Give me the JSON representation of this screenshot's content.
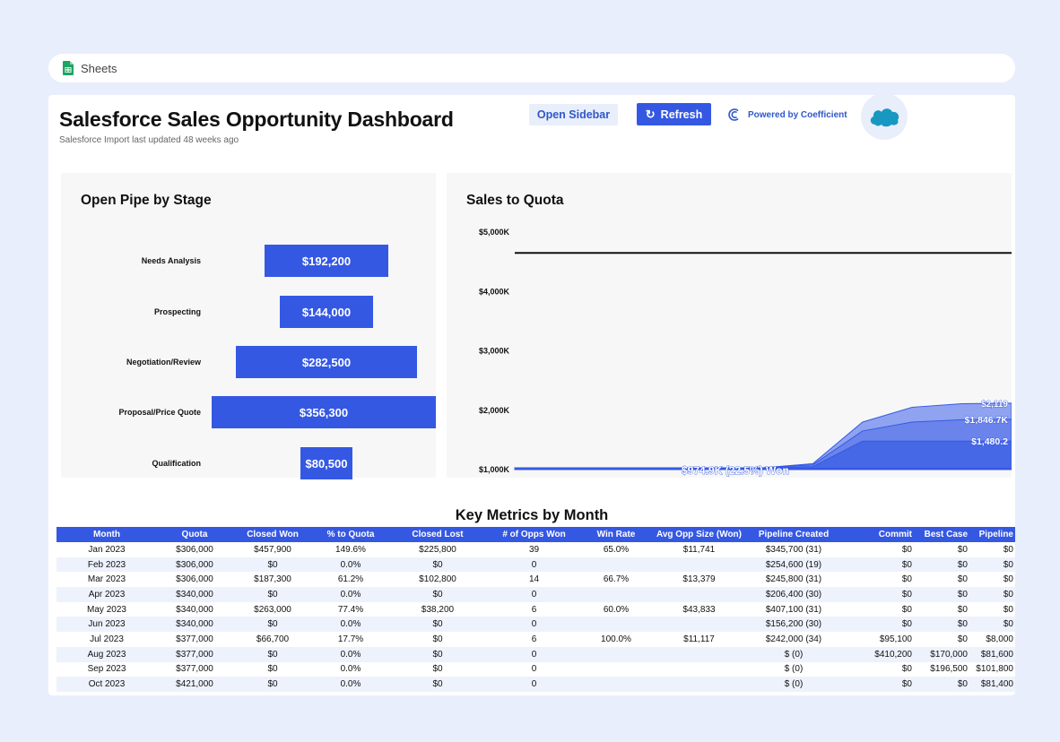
{
  "app": {
    "name": "Sheets"
  },
  "header": {
    "title": "Salesforce Sales Opportunity Dashboard",
    "subtitle": "Salesforce Import last updated 48 weeks ago",
    "open_sidebar_label": "Open Sidebar",
    "refresh_label": "Refresh",
    "powered_by": "Powered by Coefficient",
    "salesforce_logo_text": "salesforce"
  },
  "colors": {
    "accent": "#3558e3",
    "band_light": "#8fa3f0",
    "band_mid": "#6a84ec",
    "band_dark": "#4668e7"
  },
  "chart_data": [
    {
      "type": "bar",
      "title": "Open Pipe by Stage",
      "orientation": "horizontal",
      "categories": [
        "Needs Analysis",
        "Prospecting",
        "Negotiation/Review",
        "Proposal/Price Quote",
        "Qualification"
      ],
      "values": [
        192200,
        144000,
        282500,
        356300,
        80500
      ],
      "data_labels": [
        "$192,200",
        "$144,000",
        "$282,500",
        "$356,300",
        "$80,500"
      ]
    },
    {
      "type": "area",
      "title": "Sales to Quota",
      "y_ticks": [
        "$5,000K",
        "$4,000K",
        "$3,000K",
        "$2,000K",
        "$1,000K"
      ],
      "ylim_k": [
        1000,
        5000
      ],
      "quota_k": 4650,
      "annotations": [
        "$2,119",
        "$1,846.7K",
        "$1,480.2",
        "$974.9K (22.5%) Won"
      ],
      "series": [
        {
          "values_k": [
            1000,
            1000,
            1000,
            1000,
            1000,
            1000,
            1100,
            1800,
            2050,
            2110,
            2119
          ]
        },
        {
          "values_k": [
            1000,
            1000,
            1000,
            1000,
            1000,
            1000,
            1080,
            1650,
            1800,
            1840,
            1846.7
          ]
        },
        {
          "values_k": [
            1000,
            1000,
            1000,
            1000,
            1000,
            1000,
            1050,
            1480,
            1480,
            1480,
            1480.2
          ]
        },
        {
          "values_k": [
            974.9,
            974.9,
            974.9,
            974.9,
            974.9,
            974.9,
            974.9,
            974.9,
            974.9,
            974.9,
            974.9
          ]
        }
      ]
    }
  ],
  "metrics": {
    "title": "Key Metrics by Month",
    "columns": [
      "Month",
      "Quota",
      "Closed Won",
      "% to Quota",
      "Closed Lost",
      "# of Opps Won",
      "Win Rate",
      "Avg Opp Size (Won)",
      "Pipeline Created",
      "Commit",
      "Best Case",
      "Pipeline"
    ],
    "rows": [
      [
        "Jan 2023",
        "$306,000",
        "$457,900",
        "149.6%",
        "$225,800",
        "39",
        "65.0%",
        "$11,741",
        "$345,700 (31)",
        "$0",
        "$0",
        "$0"
      ],
      [
        "Feb 2023",
        "$306,000",
        "$0",
        "0.0%",
        "$0",
        "0",
        "",
        "",
        "$254,600 (19)",
        "$0",
        "$0",
        "$0"
      ],
      [
        "Mar 2023",
        "$306,000",
        "$187,300",
        "61.2%",
        "$102,800",
        "14",
        "66.7%",
        "$13,379",
        "$245,800 (31)",
        "$0",
        "$0",
        "$0"
      ],
      [
        "Apr 2023",
        "$340,000",
        "$0",
        "0.0%",
        "$0",
        "0",
        "",
        "",
        "$206,400 (30)",
        "$0",
        "$0",
        "$0"
      ],
      [
        "May 2023",
        "$340,000",
        "$263,000",
        "77.4%",
        "$38,200",
        "6",
        "60.0%",
        "$43,833",
        "$407,100 (31)",
        "$0",
        "$0",
        "$0"
      ],
      [
        "Jun 2023",
        "$340,000",
        "$0",
        "0.0%",
        "$0",
        "0",
        "",
        "",
        "$156,200 (30)",
        "$0",
        "$0",
        "$0"
      ],
      [
        "Jul 2023",
        "$377,000",
        "$66,700",
        "17.7%",
        "$0",
        "6",
        "100.0%",
        "$11,117",
        "$242,000 (34)",
        "$95,100",
        "$0",
        "$8,000"
      ],
      [
        "Aug 2023",
        "$377,000",
        "$0",
        "0.0%",
        "$0",
        "0",
        "",
        "",
        "$ (0)",
        "$410,200",
        "$170,000",
        "$81,600"
      ],
      [
        "Sep 2023",
        "$377,000",
        "$0",
        "0.0%",
        "$0",
        "0",
        "",
        "",
        "$ (0)",
        "$0",
        "$196,500",
        "$101,800"
      ],
      [
        "Oct 2023",
        "$421,000",
        "$0",
        "0.0%",
        "$0",
        "0",
        "",
        "",
        "$ (0)",
        "$0",
        "$0",
        "$81,400"
      ]
    ]
  }
}
